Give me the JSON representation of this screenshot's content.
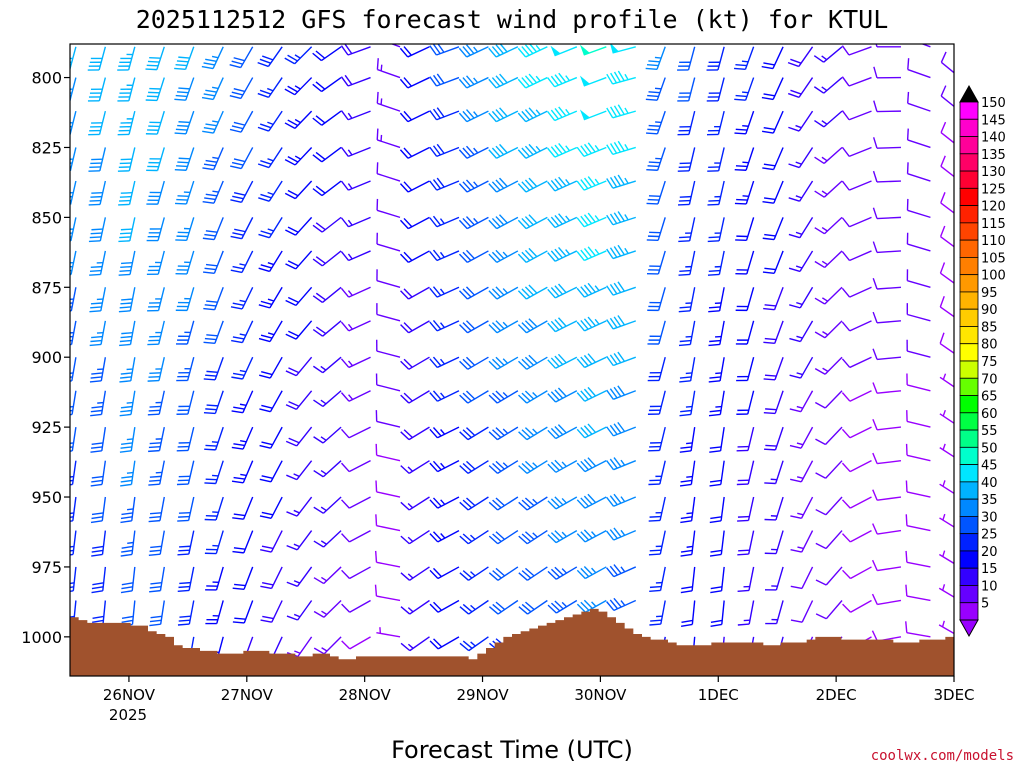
{
  "chart_data": {
    "type": "wind-barb-profile",
    "title": "2025112512 GFS forecast wind profile (kt) for KTUL",
    "xlabel": "Forecast Time (UTC)",
    "ylabel": "",
    "y_unit": "hPa",
    "y_reversed": true,
    "ylim": [
      1014,
      788
    ],
    "y_ticks": [
      800,
      825,
      850,
      875,
      900,
      925,
      950,
      975,
      1000
    ],
    "x_ticks": [
      "26NOV",
      "27NOV",
      "28NOV",
      "29NOV",
      "30NOV",
      "1DEC",
      "2DEC",
      "3DEC"
    ],
    "x_year_label": "2025",
    "x_range_days": [
      -0.5,
      7.0
    ],
    "time_step_hours": 6,
    "levels_hpa": [
      789,
      800,
      812,
      825,
      837,
      850,
      862,
      875,
      887,
      900,
      912,
      925,
      937,
      950,
      962,
      975,
      987,
      1000
    ],
    "wind_by_time": [
      {
        "spd": 40,
        "dir": 195,
        "grad": 7
      },
      {
        "spd": 42,
        "dir": 195,
        "grad": 7
      },
      {
        "spd": 44,
        "dir": 195,
        "grad": 6
      },
      {
        "spd": 42,
        "dir": 198,
        "grad": 6
      },
      {
        "spd": 40,
        "dir": 200,
        "grad": 6
      },
      {
        "spd": 36,
        "dir": 205,
        "grad": 6
      },
      {
        "spd": 32,
        "dir": 210,
        "grad": 6
      },
      {
        "spd": 28,
        "dir": 215,
        "grad": 5
      },
      {
        "spd": 25,
        "dir": 225,
        "grad": 5
      },
      {
        "spd": 22,
        "dir": 235,
        "grad": 4
      },
      {
        "spd": 18,
        "dir": 250,
        "grad": 4
      },
      {
        "spd": 14,
        "dir": 290,
        "grad": 3
      },
      {
        "spd": 22,
        "dir": 245,
        "grad": 3
      },
      {
        "spd": 30,
        "dir": 250,
        "grad": 4
      },
      {
        "spd": 36,
        "dir": 245,
        "grad": 5
      },
      {
        "spd": 42,
        "dir": 245,
        "grad": 6
      },
      {
        "spd": 46,
        "dir": 245,
        "grad": 7
      },
      {
        "spd": 48,
        "dir": 248,
        "grad": 7
      },
      {
        "spd": 50,
        "dir": 250,
        "grad": 7
      },
      {
        "spd": 48,
        "dir": 255,
        "grad": 7
      },
      {
        "spd": 35,
        "dir": 200,
        "grad": 5
      },
      {
        "spd": 30,
        "dir": 195,
        "grad": 4
      },
      {
        "spd": 28,
        "dir": 195,
        "grad": 4
      },
      {
        "spd": 25,
        "dir": 200,
        "grad": 4
      },
      {
        "spd": 22,
        "dir": 205,
        "grad": 3
      },
      {
        "spd": 18,
        "dir": 215,
        "grad": 3
      },
      {
        "spd": 15,
        "dir": 230,
        "grad": 2
      },
      {
        "spd": 12,
        "dir": 250,
        "grad": 2
      },
      {
        "spd": 12,
        "dir": 270,
        "grad": 2
      },
      {
        "spd": 12,
        "dir": 290,
        "grad": 2
      },
      {
        "spd": 10,
        "dir": 310,
        "grad": 2
      }
    ],
    "terrain_hpa": [
      993,
      994,
      995,
      995,
      995,
      995,
      995,
      996,
      996,
      998,
      999,
      1000,
      1003,
      1004,
      1004,
      1005,
      1005,
      1006,
      1006,
      1006,
      1005,
      1005,
      1005,
      1006,
      1006,
      1006,
      1007,
      1007,
      1006,
      1006,
      1007,
      1008,
      1008,
      1007,
      1007,
      1007,
      1007,
      1007,
      1007,
      1007,
      1007,
      1007,
      1007,
      1007,
      1007,
      1007,
      1008,
      1006,
      1004,
      1002,
      1000,
      999,
      998,
      997,
      996,
      995,
      994,
      993,
      992,
      991,
      990,
      991,
      993,
      995,
      997,
      999,
      1000,
      1001,
      1001,
      1002,
      1003,
      1003,
      1003,
      1003,
      1002,
      1002,
      1002,
      1002,
      1002,
      1002,
      1003,
      1003,
      1002,
      1002,
      1002,
      1001,
      1000,
      1000,
      1000,
      1001,
      1001,
      1001,
      1001,
      1001,
      1001,
      1002,
      1002,
      1002,
      1001,
      1001,
      1001,
      1000
    ],
    "colorbar": {
      "labels": [
        "150",
        "145",
        "140",
        "135",
        "130",
        "125",
        "120",
        "115",
        "110",
        "105",
        "100",
        "95",
        "90",
        "85",
        "80",
        "75",
        "70",
        "65",
        "60",
        "55",
        "50",
        "45",
        "40",
        "35",
        "30",
        "25",
        "20",
        "15",
        "10",
        "5"
      ],
      "colors": [
        "#ff00ff",
        "#ff00cc",
        "#ff0099",
        "#ff0066",
        "#ff0033",
        "#ff0000",
        "#ff2200",
        "#ff4400",
        "#ff6600",
        "#ff7f00",
        "#ff9900",
        "#ffb300",
        "#ffcc00",
        "#ffe600",
        "#ffff00",
        "#ccff00",
        "#66ff00",
        "#00ff00",
        "#00ff44",
        "#00ff88",
        "#00ffcc",
        "#00e6ff",
        "#00b3ff",
        "#0088ff",
        "#0055ff",
        "#0022ff",
        "#0000ff",
        "#3300ff",
        "#6600ff",
        "#9900ff"
      ]
    },
    "terrain_color": "#a0522d"
  },
  "credit": "coolwx.com/models"
}
